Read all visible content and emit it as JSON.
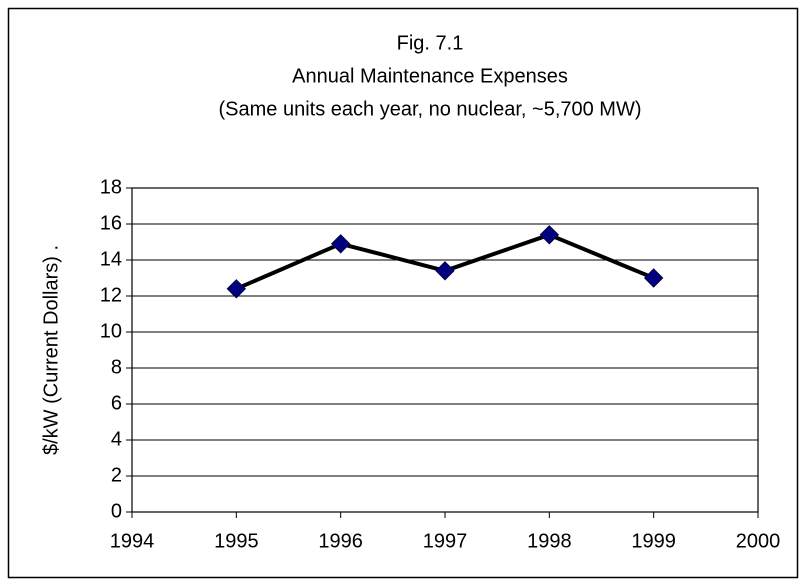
{
  "chart_data": {
    "type": "line",
    "title": [
      "Fig. 7.1",
      "Annual Maintenance Expenses",
      "(Same units each year, no nuclear, ~5,700 MW)"
    ],
    "y_label": "$/kW (Current Dollars)      .",
    "x": [
      1995,
      1996,
      1997,
      1998,
      1999
    ],
    "values": [
      12.4,
      14.9,
      13.4,
      15.4,
      13.0
    ],
    "line_color": "#000000",
    "marker_color": "#000080",
    "xlim": [
      1994,
      2000
    ],
    "xticks": [
      1994,
      1995,
      1996,
      1997,
      1998,
      1999,
      2000
    ],
    "ylim": [
      0,
      18
    ],
    "yticks": [
      0,
      2,
      4,
      6,
      8,
      10,
      12,
      14,
      16,
      18
    ],
    "grid": true
  }
}
